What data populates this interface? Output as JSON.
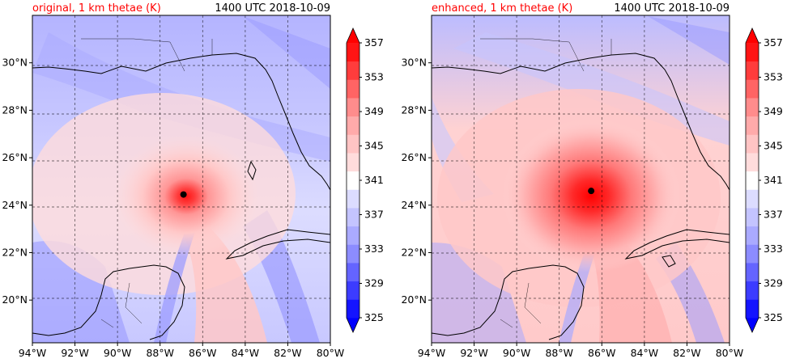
{
  "panels": [
    {
      "id": "original",
      "title_left": "original, 1 km thetae (K)",
      "title_right": "1400 UTC 2018-10-09",
      "eye": {
        "lon": -86.9,
        "lat": 24.45
      }
    },
    {
      "id": "enhanced",
      "title_left": "enhanced, 1 km thetae (K)",
      "title_right": "1400 UTC 2018-10-09",
      "eye": {
        "lon": -86.5,
        "lat": 24.6
      }
    }
  ],
  "lon_ticks": [
    "94°W",
    "92°W",
    "90°W",
    "88°W",
    "86°W",
    "84°W",
    "82°W",
    "80°W"
  ],
  "lat_ticks": [
    "20°N",
    "22°N",
    "24°N",
    "26°N",
    "28°N",
    "30°N"
  ],
  "colorbar": {
    "labels": [
      "325",
      "329",
      "333",
      "337",
      "341",
      "345",
      "349",
      "353",
      "357"
    ],
    "colors": [
      "#1414ff",
      "#3c3cff",
      "#6464ff",
      "#8c8cff",
      "#aaaaff",
      "#c4c4ff",
      "#dcdcff",
      "#ffffff",
      "#ffdcdc",
      "#ffc4c4",
      "#ffaaaa",
      "#ff8c8c",
      "#ff6464",
      "#ff3c3c",
      "#ff1414"
    ],
    "extend_low_color": "#0000ff",
    "extend_high_color": "#ff0000"
  },
  "chart_data": {
    "type": "heatmap",
    "variable": "1 km thetae (K)",
    "xlim": [
      -94,
      -80
    ],
    "ylim": [
      18.2,
      32
    ],
    "levels": [
      325,
      327,
      329,
      331,
      333,
      335,
      337,
      339,
      341,
      343,
      345,
      347,
      349,
      351,
      353,
      355,
      357,
      359
    ]
  }
}
